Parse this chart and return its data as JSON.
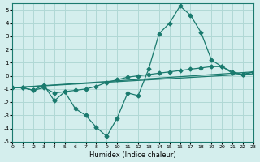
{
  "xlabel": "Humidex (Indice chaleur)",
  "ylabel": "",
  "bg_color": "#d4eeed",
  "grid_color": "#b0d8d5",
  "line_color": "#1a7a6e",
  "xlim": [
    0,
    23
  ],
  "ylim": [
    -5,
    5.5
  ],
  "xticks": [
    0,
    1,
    2,
    3,
    4,
    5,
    6,
    7,
    8,
    9,
    10,
    11,
    12,
    13,
    14,
    15,
    16,
    17,
    18,
    19,
    20,
    21,
    22,
    23
  ],
  "yticks": [
    -5,
    -4,
    -3,
    -2,
    -1,
    0,
    1,
    2,
    3,
    4,
    5
  ],
  "line1_x": [
    0,
    1,
    2,
    3,
    4,
    5,
    6,
    7,
    8,
    9,
    10,
    11,
    12,
    13,
    14,
    15,
    16,
    17,
    18,
    19,
    20,
    21,
    22,
    23
  ],
  "line1_y": [
    -0.9,
    -0.9,
    -1.1,
    -0.7,
    -1.9,
    -1.2,
    -2.5,
    -3.0,
    -3.9,
    -4.6,
    -3.2,
    -1.3,
    -1.5,
    0.5,
    3.2,
    4.0,
    5.3,
    4.6,
    3.3,
    1.2,
    0.7,
    0.3,
    0.1,
    0.3
  ],
  "line2_x": [
    0,
    1,
    2,
    3,
    4,
    5,
    6,
    7,
    8,
    9,
    10,
    11,
    12,
    13,
    14,
    15,
    16,
    17,
    18,
    19,
    20,
    21,
    22,
    23
  ],
  "line2_y": [
    -0.9,
    -0.9,
    -1.1,
    -0.9,
    -1.3,
    -1.2,
    -1.1,
    -1.0,
    -0.8,
    -0.5,
    -0.3,
    -0.1,
    0.0,
    0.1,
    0.2,
    0.3,
    0.4,
    0.5,
    0.6,
    0.7,
    0.7,
    0.2,
    0.1,
    0.3
  ],
  "line3_x": [
    0,
    23
  ],
  "line3_y": [
    -0.9,
    0.3
  ],
  "line4_x": [
    0,
    23
  ],
  "line4_y": [
    -0.9,
    0.3
  ]
}
